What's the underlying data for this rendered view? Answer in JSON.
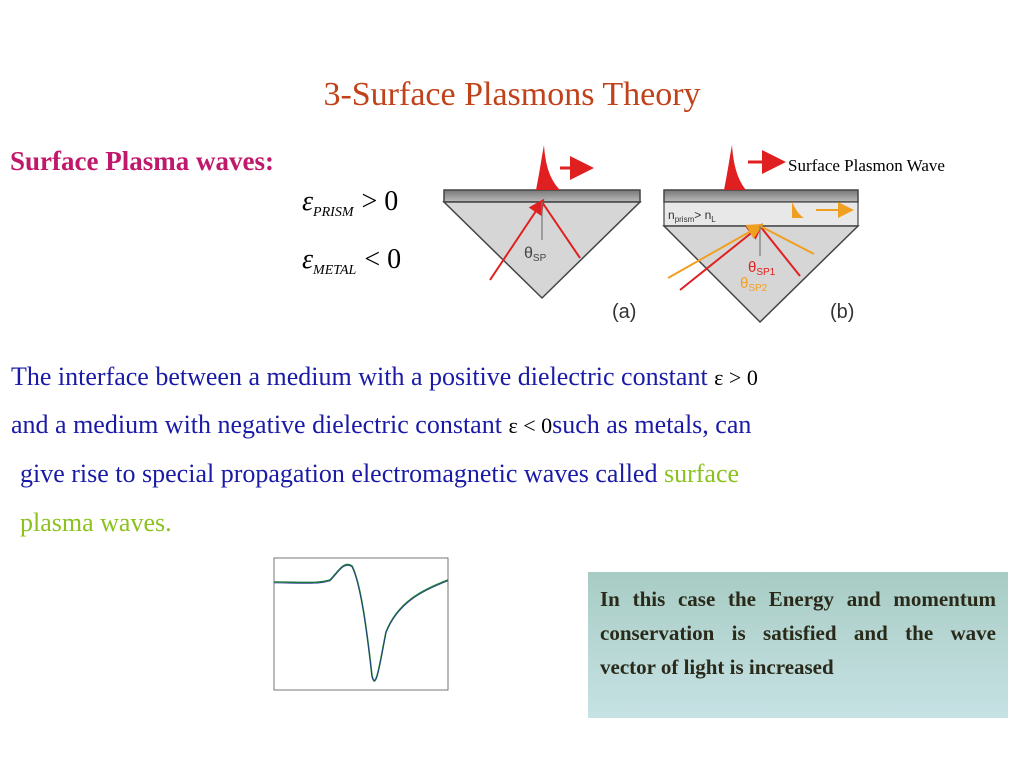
{
  "title": "3-Surface Plasmons Theory",
  "section_heading": "Surface Plasma waves:",
  "equations": {
    "prism": {
      "symbol": "ε",
      "subscript": "PRISM",
      "relation": "> 0"
    },
    "metal": {
      "symbol": "ε",
      "subscript": "METAL",
      "relation": "< 0"
    }
  },
  "figure": {
    "label": "Surface Plasmon Wave",
    "panel_a": "(a)",
    "panel_b": "(b)",
    "theta_sp": "θ",
    "theta_sp_sub": "SP",
    "theta_sp1": "θ",
    "theta_sp1_sub": "SP1",
    "theta_sp2": "θ",
    "theta_sp2_sub": "SP2",
    "index_label": "n",
    "index_sub1": "prism",
    "index_mid": "> n",
    "index_sub2": "L"
  },
  "body": {
    "line1": "The interface between a medium with a positive dielectric constant",
    "line1_eq": "ε > 0",
    "line2a": "and a medium with negative dielectric constant",
    "line2_eq": "ε < 0",
    "line2b": "such as metals, can",
    "line3a": " give rise to special propagation electromagnetic waves called ",
    "line3_highlight": "surface",
    "line4": "plasma waves."
  },
  "note": "In this case the Energy and momentum conservation is satisfied and the wave vector of light is increased",
  "colors": {
    "title": "#c0421b",
    "heading": "#c0186a",
    "body": "#1a1aa6",
    "highlight": "#8bc21e",
    "note_bg": "#b4d6d2",
    "laser": "#e02020",
    "orange": "#f0a020"
  }
}
